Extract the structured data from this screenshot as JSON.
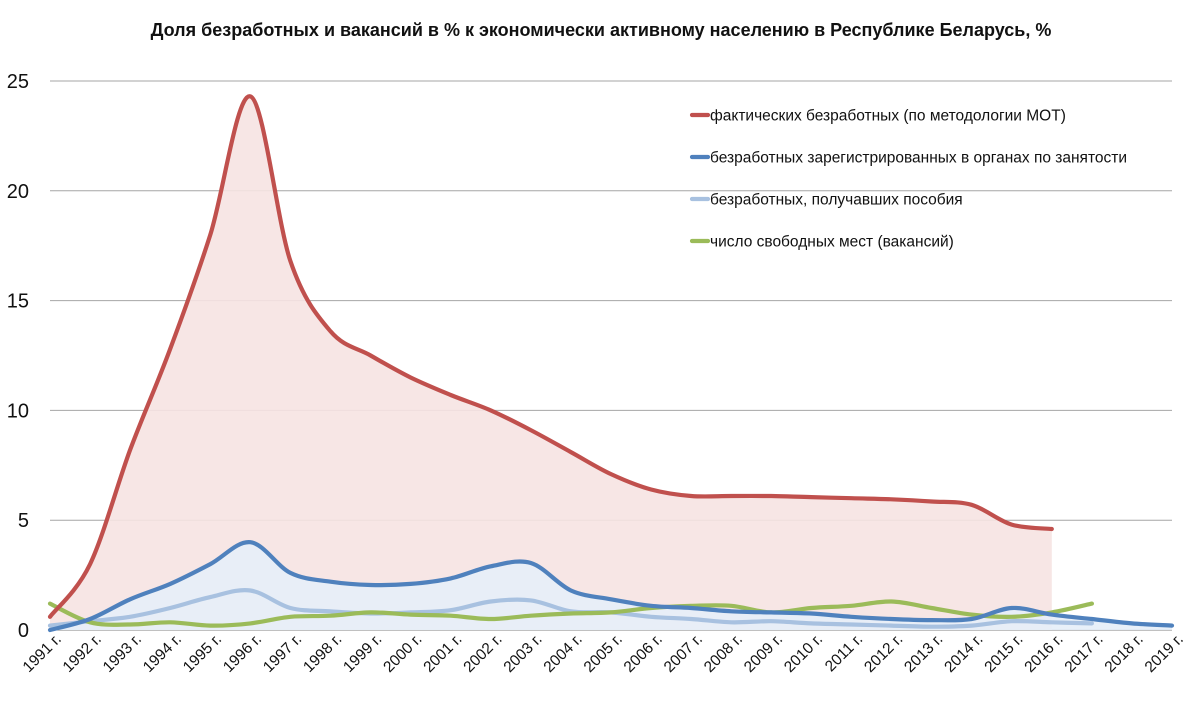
{
  "chart_data": {
    "type": "line",
    "title": "Доля безработных  и вакансий в % к экономически активному населению в Республике Беларусь, %",
    "xlabel": "",
    "ylabel": "",
    "ylim": [
      0,
      25
    ],
    "yticks": [
      "0",
      "5",
      "10",
      "15",
      "20",
      "25"
    ],
    "grid": true,
    "legend_position": "top-right",
    "categories": [
      "1991 г.",
      "1992 г.",
      "1993 г.",
      "1994 г.",
      "1995 г.",
      "1996 г.",
      "1997 г.",
      "1998 г.",
      "1999 г.",
      "2000 г.",
      "2001 г.",
      "2002 г.",
      "2003 г.",
      "2004 г.",
      "2005 г.",
      "2006 г.",
      "2007 г.",
      "2008 г.",
      "2009 г.",
      "2010 г.",
      "2011 г.",
      "2012 г.",
      "2013 г.",
      "2014 г.",
      "2015 г.",
      "2016 г.",
      "2017 г.",
      "2018 г.",
      "2019 г."
    ],
    "series": [
      {
        "name": "фактических безработных (по методологии МОТ)",
        "color": "#c0504d",
        "area_fill": "#f6e3e2",
        "values": [
          0.6,
          3.0,
          8.2,
          12.8,
          18.0,
          24.3,
          16.8,
          13.6,
          12.5,
          11.5,
          10.7,
          10.0,
          9.1,
          8.1,
          7.1,
          6.4,
          6.1,
          6.1,
          6.1,
          6.05,
          6.0,
          5.95,
          5.85,
          5.7,
          4.8,
          4.6,
          null,
          null,
          null
        ]
      },
      {
        "name": "безработных зарегистрированных в органах по занятости",
        "color": "#4f81bd",
        "area_fill": "#e6eef8",
        "values": [
          0.0,
          0.5,
          1.4,
          2.1,
          3.0,
          4.0,
          2.6,
          2.2,
          2.05,
          2.1,
          2.35,
          2.9,
          3.05,
          1.8,
          1.4,
          1.1,
          1.0,
          0.85,
          0.8,
          0.75,
          0.6,
          0.5,
          0.45,
          0.5,
          1.0,
          0.7,
          0.5,
          0.3,
          0.2
        ]
      },
      {
        "name": "безработных, получавших пособия",
        "color": "#a8c1e0",
        "values": [
          0.2,
          0.4,
          0.6,
          1.0,
          1.5,
          1.8,
          1.0,
          0.85,
          0.75,
          0.8,
          0.9,
          1.3,
          1.35,
          0.85,
          0.8,
          0.6,
          0.5,
          0.35,
          0.4,
          0.3,
          0.25,
          0.2,
          0.15,
          0.2,
          0.4,
          0.35,
          0.3,
          null,
          null
        ]
      },
      {
        "name": "число свободных мест (вакансий)",
        "color": "#9bbb59",
        "values": [
          1.2,
          0.35,
          0.25,
          0.35,
          0.2,
          0.3,
          0.6,
          0.65,
          0.8,
          0.7,
          0.65,
          0.5,
          0.65,
          0.75,
          0.8,
          1.0,
          1.1,
          1.1,
          0.8,
          1.0,
          1.1,
          1.3,
          1.0,
          0.7,
          0.6,
          0.8,
          1.2,
          null,
          null
        ]
      }
    ]
  }
}
